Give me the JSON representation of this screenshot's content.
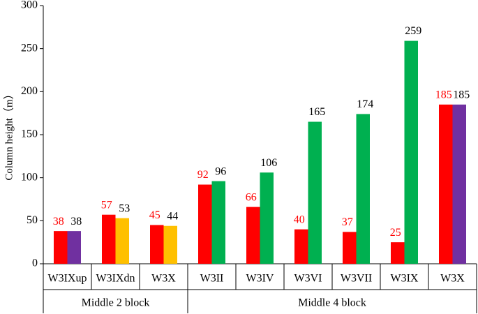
{
  "chart_data": {
    "type": "bar",
    "y_label": "Column height（m）",
    "groups": [
      {
        "label": "Middle 2 block",
        "categories": [
          "W3IXup",
          "W3IXdn",
          "W3X"
        ]
      },
      {
        "label": "Middle 4 block",
        "categories": [
          "W3II",
          "W3IV",
          "W3VI",
          "W3VII",
          "W3IX",
          "W3X"
        ]
      }
    ],
    "series": [
      {
        "color": "#ff0000",
        "label_color": "#ff0000",
        "values": [
          38,
          57,
          45,
          92,
          66,
          40,
          37,
          25,
          185
        ]
      },
      {
        "colors": [
          "#7030a0",
          "#ffc000",
          "#ffc000",
          "#00b050",
          "#00b050",
          "#00b050",
          "#00b050",
          "#00b050",
          "#7030a0"
        ],
        "label_color": "#000000",
        "values": [
          38,
          53,
          44,
          96,
          106,
          165,
          174,
          259,
          185
        ]
      }
    ],
    "ylim": [
      0,
      300
    ],
    "yticks": [
      0,
      50,
      100,
      150,
      200,
      250,
      300
    ]
  }
}
